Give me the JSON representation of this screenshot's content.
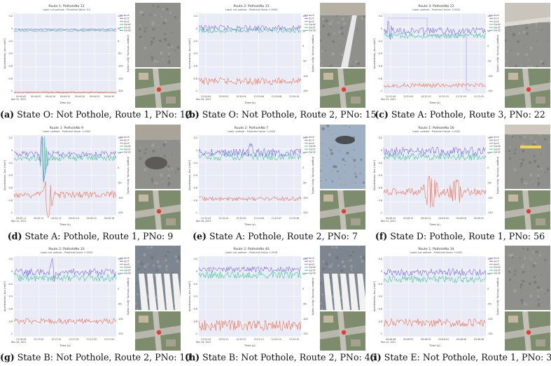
{
  "axis": {
    "time_label": "Time (s)",
    "left_label": "Acceleration, Acc (m/s²)",
    "right_label": "Angular Velocity, Gyro (rad/s)"
  },
  "legend": [
    "AccX",
    "AccY",
    "AccZ",
    "GyroX",
    "GyroY",
    "GyroZ"
  ],
  "colors": {
    "acc": "#6b5ce7",
    "gyro": "#2dbf8f",
    "accz": "#ee6a4e",
    "plot_bg": "#e9ecf6",
    "grid": "#ffffff"
  },
  "panels": [
    {
      "id": "a",
      "title": "Route 1: PotholeNo 12",
      "subtitle": "Label: not pothole - Predicted Value: 0.0",
      "caption_tag": "(a)",
      "caption_text": " State O: Not Pothole, Route 1, PNo: 12",
      "date": "Nov 22, 2021",
      "xticks": [
        "09:44:00",
        "09:44:05",
        "09:44:10",
        "09:44:15",
        "09:44:20",
        "09:44:25",
        "09:44:30"
      ],
      "yticks_left": [
        "0.2",
        "0",
        "-0.2",
        "-0.4",
        "-0.6",
        "-0.8",
        "-1"
      ],
      "yticks_right": [
        "100",
        "50",
        "0",
        "-50",
        "-100",
        "-150",
        "-200"
      ],
      "photo_top": "asphalt-road-photo",
      "photo_bottom": "aerial-map-photo"
    },
    {
      "id": "b",
      "title": "Route 2: PotholeNo 15",
      "subtitle": "Label: not pothole - Predicted Value: 0.0000",
      "caption_tag": "(b)",
      "caption_text": " State O: Not Pothole, Route 2, PNo: 15",
      "date": "Nov 26, 2021",
      "xticks": [
        "13:20:00",
        "13:20:02",
        "13:20:04",
        "13:20:06",
        "13:20:08",
        "13:20:10"
      ],
      "yticks_left": [
        "0.2",
        "0",
        "-0.2",
        "-0.4",
        "-0.6",
        "-0.8",
        "-1"
      ],
      "yticks_right": [
        "100",
        "50",
        "0",
        "-50",
        "-100",
        "-150"
      ],
      "photo_top": "road-lane-photo",
      "photo_bottom": "aerial-map-photo"
    },
    {
      "id": "c",
      "title": "Route 3: PotholeNo 22",
      "subtitle": "Label: pothole - Predicted Value: 1.0000",
      "caption_tag": "(c)",
      "caption_text": " State A: Pothole, Route 3, PNo: 22",
      "date": "Nov 22, 2021",
      "xticks": [
        "12:31:00",
        "12:31:05",
        "12:31:10",
        "12:31:15",
        "12:31:20",
        "12:31:25"
      ],
      "yticks_left": [
        "0.2",
        "0",
        "-0.2",
        "-0.4",
        "-0.6",
        "-0.8",
        "-1"
      ],
      "yticks_right": [
        "100",
        "50",
        "0",
        "-50",
        "-100",
        "-150"
      ],
      "photo_top": "road-edge-photo",
      "photo_bottom": "aerial-map-photo"
    },
    {
      "id": "d",
      "title": "Route 1: PotholeNo 9",
      "subtitle": "Label: pothole - Predicted Value: 1.0000",
      "caption_tag": "(d)",
      "caption_text": " State A: Pothole, Route 1, PNo: 9",
      "date": "Nov 22, 2021",
      "xticks": [
        "09:42:11",
        "09:42:12",
        "09:42:13",
        "09:42:14",
        "09:42:15",
        "09:42:16"
      ],
      "yticks_left": [
        "0.2",
        "0",
        "-0.2",
        "-0.4",
        "-0.6",
        "-0.8",
        "-1"
      ],
      "yticks_right": [
        "100",
        "50",
        "0",
        "-50",
        "-100",
        "-150"
      ],
      "photo_top": "pothole-road-photo",
      "photo_bottom": "aerial-map-photo"
    },
    {
      "id": "e",
      "title": "Route 2: PotholeNo 7",
      "subtitle": "Label: pothole - Predicted Value: 1.0000",
      "caption_tag": "(e)",
      "caption_text": " State A: Pothole, Route 2, PNo: 7",
      "date": "Nov 26, 2021",
      "xticks": [
        "13:15:43",
        "13:15:44",
        "13:15:45",
        "13:15:46",
        "13:15:47",
        "13:15:48"
      ],
      "yticks_left": [
        "0.2",
        "0",
        "-0.2",
        "-0.4",
        "-0.6",
        "-0.8",
        "-1"
      ],
      "yticks_right": [
        "100",
        "50",
        "0",
        "-50",
        "-100",
        "-150"
      ],
      "photo_top": "pothole-closeup-photo",
      "photo_bottom": "aerial-map-photo"
    },
    {
      "id": "f",
      "title": "Route 1: PotholeNo 56",
      "subtitle": "Label: pothole - Predicted Value: 1.0000",
      "caption_tag": "(f)",
      "caption_text": " State D: Pothole, Route 1, PNo: 56",
      "date": "Nov 22, 2021",
      "xticks": [
        "09:49:10",
        "09:49:12",
        "09:49:14",
        "09:49:16",
        "09:49:18",
        "09:49:20"
      ],
      "yticks_left": [
        "0.2",
        "0",
        "-0.2",
        "-0.4",
        "-0.6",
        "-0.8",
        "-1"
      ],
      "yticks_right": [
        "100",
        "50",
        "0",
        "-50",
        "-100",
        "-150"
      ],
      "photo_top": "road-marking-photo",
      "photo_bottom": "aerial-map-photo"
    },
    {
      "id": "g",
      "title": "Route 2: PotholeNo 10",
      "subtitle": "Label: not pothole - Predicted Value: 0.0000",
      "caption_tag": "(g)",
      "caption_text": " State B: Not Pothole, Route 2, PNo: 10",
      "date": "Nov 26, 2021",
      "xticks": [
        "13:16:59",
        "13:17:00",
        "13:17:01",
        "13:17:02",
        "13:17:03",
        "13:17:04"
      ],
      "yticks_left": [
        "0.2",
        "0",
        "-0.2",
        "-0.4",
        "-0.6",
        "-0.8",
        "-1"
      ],
      "yticks_right": [
        "100",
        "50",
        "0",
        "-50",
        "-100",
        "-150"
      ],
      "photo_top": "crosswalk-photo",
      "photo_bottom": "aerial-map-photo"
    },
    {
      "id": "h",
      "title": "Route 2: PotholeNo 46",
      "subtitle": "Label: not pothole - Predicted Value: 0.0016",
      "caption_tag": "(h)",
      "caption_text": " State B: Not Pothole, Route 2, PNo: 46",
      "date": "Nov 26, 2021",
      "xticks": [
        "13:22:10",
        "13:22:11",
        "13:22:12",
        "13:22:13",
        "13:22:14",
        "13:22:15"
      ],
      "yticks_left": [
        "0.2",
        "0",
        "-0.2",
        "-0.4",
        "-0.6",
        "-0.8",
        "-1"
      ],
      "yticks_right": [
        "100",
        "50",
        "0",
        "-50",
        "-100",
        "-150"
      ],
      "photo_top": "crosswalk-photo",
      "photo_bottom": "aerial-map-photo"
    },
    {
      "id": "i",
      "title": "Route 1: PotholeNo 34",
      "subtitle": "Label: not pothole - Predicted Value: 0.0002",
      "caption_tag": "(i)",
      "caption_text": " State E: Not Pothole, Route 1, PNo: 34",
      "date": "Nov 22, 2021",
      "xticks": [
        "09:46:48",
        "09:46:50",
        "09:46:52",
        "09:46:54",
        "09:46:56",
        "09:46:58"
      ],
      "yticks_left": [
        "0.2",
        "0",
        "-0.2",
        "-0.4",
        "-0.6",
        "-0.8",
        "-1"
      ],
      "yticks_right": [
        "100",
        "50",
        "0",
        "-50",
        "-100",
        "-150"
      ],
      "photo_top": "asphalt-road-photo",
      "photo_bottom": "aerial-map-photo"
    }
  ]
}
